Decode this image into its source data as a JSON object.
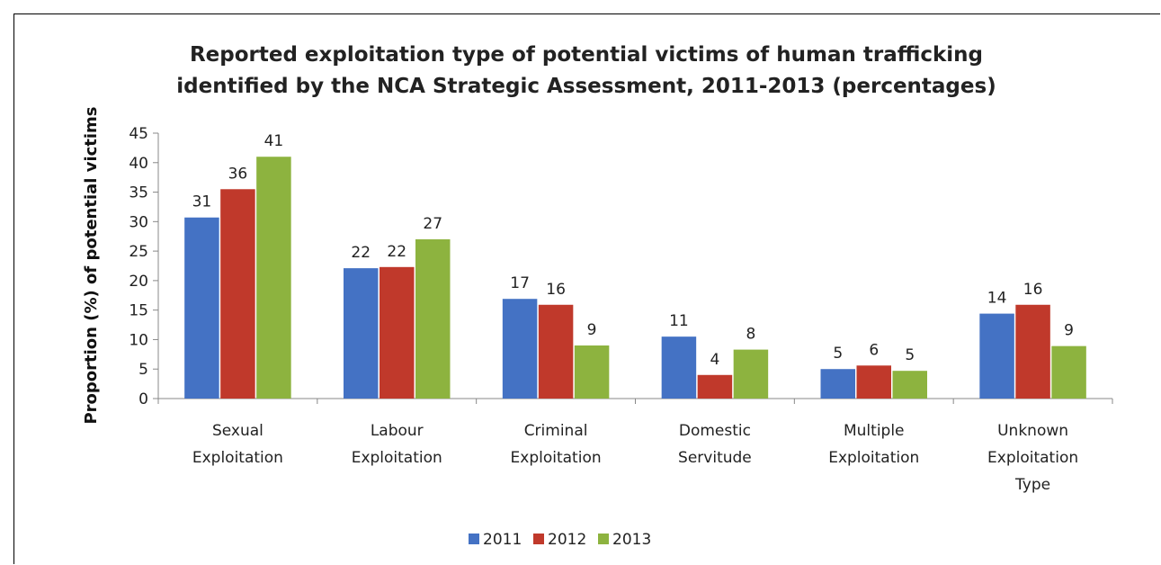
{
  "chart_data": {
    "type": "bar",
    "title": "Reported exploitation type of potential victims of human trafficking identified by the NCA Strategic Assessment, 2011-2013 (percentages)",
    "title_lines": [
      "Reported exploitation type of potential victims of human trafficking",
      "identified by the NCA Strategic Assessment, 2011-2013 (percentages)"
    ],
    "ylabel": "Proportion (%) of potential victims",
    "ylim": [
      0,
      45
    ],
    "yticks": [
      0,
      5,
      10,
      15,
      20,
      25,
      30,
      35,
      40,
      45
    ],
    "grid": false,
    "legend_position": "bottom",
    "categories": [
      "Sexual Exploitation",
      "Labour Exploitation",
      "Criminal Exploitation",
      "Domestic Servitude",
      "Multiple Exploitation",
      "Unknown Exploitation Type"
    ],
    "category_lines": [
      [
        "Sexual",
        "Exploitation"
      ],
      [
        "Labour",
        "Exploitation"
      ],
      [
        "Criminal",
        "Exploitation"
      ],
      [
        "Domestic",
        "Servitude"
      ],
      [
        "Multiple",
        "Exploitation"
      ],
      [
        "Unknown",
        "Exploitation",
        "Type"
      ]
    ],
    "series": [
      {
        "name": "2011",
        "color": "#4472c4",
        "values": [
          30.7,
          22.1,
          16.9,
          10.5,
          5.0,
          14.4
        ],
        "labels": [
          "31",
          "22",
          "17",
          "11",
          "5",
          "14"
        ]
      },
      {
        "name": "2012",
        "color": "#c0392b",
        "values": [
          35.5,
          22.3,
          15.9,
          4.0,
          5.6,
          15.9
        ],
        "labels": [
          "36",
          "22",
          "16",
          "4",
          "6",
          "16"
        ]
      },
      {
        "name": "2013",
        "color": "#8db33f",
        "values": [
          41.0,
          27.0,
          9.0,
          8.3,
          4.7,
          8.9
        ],
        "labels": [
          "41",
          "27",
          "9",
          "8",
          "5",
          "9"
        ]
      }
    ]
  }
}
